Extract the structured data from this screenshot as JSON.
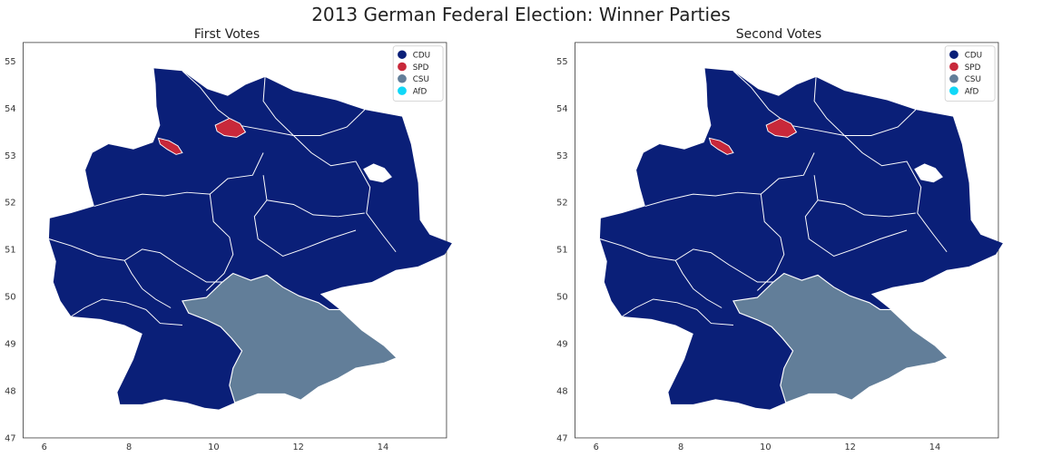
{
  "figure": {
    "title": "2013 German Federal Election: Winner Parties"
  },
  "legend_entries": [
    {
      "party": "CDU",
      "color": "#0a1f78"
    },
    {
      "party": "SPD",
      "color": "#c8283a"
    },
    {
      "party": "CSU",
      "color": "#627e99"
    },
    {
      "party": "AfD",
      "color": "#10d8f8"
    }
  ],
  "axes": {
    "x_ticks": [
      "6",
      "8",
      "10",
      "12",
      "14"
    ],
    "y_ticks": [
      "55",
      "54",
      "53",
      "52",
      "51",
      "50",
      "49",
      "48",
      "47"
    ]
  },
  "maps": [
    {
      "id": "first",
      "title": "First Votes"
    },
    {
      "id": "second",
      "title": "Second Votes"
    }
  ],
  "colors": {
    "border": "#ffffff",
    "frame": "#333333"
  }
}
